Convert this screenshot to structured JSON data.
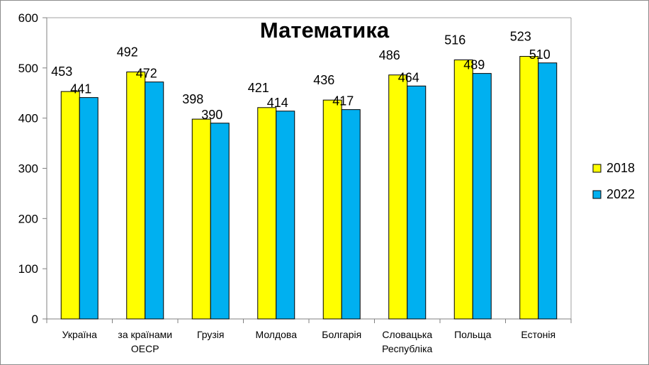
{
  "chart_data": {
    "type": "bar",
    "title": "Математика",
    "categories": [
      [
        "Україна"
      ],
      [
        "за країнами",
        "ОЕСР"
      ],
      [
        "Грузія"
      ],
      [
        "Молдова"
      ],
      [
        "Болгарія"
      ],
      [
        "Словацька",
        "Республіка"
      ],
      [
        "Польща"
      ],
      [
        "Естонія"
      ]
    ],
    "series": [
      {
        "name": "2018",
        "color": "#ffff00",
        "values": [
          453,
          492,
          398,
          421,
          436,
          486,
          516,
          523
        ]
      },
      {
        "name": "2022",
        "color": "#00b0f0",
        "values": [
          441,
          472,
          390,
          414,
          417,
          464,
          489,
          510
        ]
      }
    ],
    "ylim": [
      0,
      600
    ],
    "yticks": [
      0,
      100,
      200,
      300,
      400,
      500,
      600
    ],
    "grid": false,
    "legend_position": "right",
    "data_labels": true
  }
}
